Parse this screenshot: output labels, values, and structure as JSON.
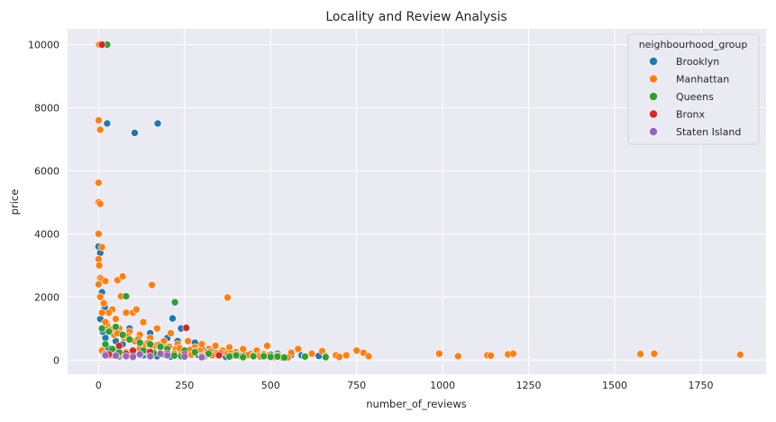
{
  "chart_data": {
    "type": "scatter",
    "title": "Locality and Review Analysis",
    "xlabel": "number_of_reviews",
    "ylabel": "price",
    "xlim": [
      -90,
      1940
    ],
    "ylim": [
      -450,
      10500
    ],
    "xticks": [
      0,
      250,
      500,
      750,
      1000,
      1250,
      1500,
      1750
    ],
    "yticks": [
      0,
      2000,
      4000,
      6000,
      8000,
      10000
    ],
    "grid": true,
    "legend": {
      "title": "neighbourhood_group",
      "position": "top-right"
    },
    "series": [
      {
        "name": "Brooklyn",
        "color": "#1f77b4",
        "points": [
          [
            25,
            7500
          ],
          [
            172,
            7500
          ],
          [
            105,
            7200
          ],
          [
            0,
            3600
          ],
          [
            5,
            3400
          ],
          [
            10,
            2150
          ],
          [
            18,
            1680
          ],
          [
            215,
            1320
          ],
          [
            240,
            1000
          ],
          [
            90,
            1000
          ],
          [
            150,
            850
          ],
          [
            200,
            700
          ],
          [
            230,
            600
          ],
          [
            280,
            550
          ],
          [
            300,
            350
          ],
          [
            330,
            300
          ],
          [
            380,
            300
          ],
          [
            400,
            250
          ],
          [
            420,
            200
          ],
          [
            460,
            180
          ],
          [
            500,
            170
          ],
          [
            520,
            200
          ],
          [
            560,
            160
          ],
          [
            590,
            150
          ],
          [
            600,
            130
          ],
          [
            640,
            130
          ],
          [
            50,
            600
          ],
          [
            70,
            500
          ],
          [
            120,
            420
          ],
          [
            160,
            380
          ],
          [
            190,
            300
          ],
          [
            260,
            260
          ],
          [
            350,
            220
          ],
          [
            440,
            160
          ],
          [
            5,
            1300
          ],
          [
            12,
            900
          ],
          [
            25,
            400
          ],
          [
            40,
            250
          ],
          [
            80,
            180
          ],
          [
            130,
            150
          ],
          [
            170,
            120
          ],
          [
            210,
            110
          ],
          [
            250,
            150
          ],
          [
            310,
            120
          ],
          [
            370,
            100
          ],
          [
            30,
            150
          ],
          [
            60,
            120
          ],
          [
            100,
            200
          ],
          [
            140,
            250
          ],
          [
            180,
            220
          ],
          [
            220,
            180
          ],
          [
            270,
            200
          ],
          [
            290,
            160
          ],
          [
            340,
            180
          ],
          [
            20,
            700
          ],
          [
            35,
            900
          ],
          [
            45,
            320
          ]
        ]
      },
      {
        "name": "Manhattan",
        "color": "#ff7f0e",
        "points": [
          [
            0,
            10000
          ],
          [
            3,
            10000
          ],
          [
            0,
            7600
          ],
          [
            5,
            7300
          ],
          [
            0,
            5620
          ],
          [
            0,
            5000
          ],
          [
            5,
            4950
          ],
          [
            0,
            4000
          ],
          [
            10,
            3580
          ],
          [
            0,
            3200
          ],
          [
            2,
            3000
          ],
          [
            5,
            2600
          ],
          [
            10,
            2550
          ],
          [
            55,
            2530
          ],
          [
            20,
            2500
          ],
          [
            0,
            2400
          ],
          [
            70,
            2650
          ],
          [
            80,
            1500
          ],
          [
            65,
            2020
          ],
          [
            155,
            2380
          ],
          [
            375,
            1980
          ],
          [
            40,
            1600
          ],
          [
            100,
            1500
          ],
          [
            110,
            1600
          ],
          [
            130,
            1200
          ],
          [
            170,
            1000
          ],
          [
            210,
            850
          ],
          [
            260,
            600
          ],
          [
            300,
            500
          ],
          [
            340,
            450
          ],
          [
            380,
            400
          ],
          [
            420,
            350
          ],
          [
            460,
            300
          ],
          [
            490,
            450
          ],
          [
            560,
            230
          ],
          [
            580,
            350
          ],
          [
            620,
            200
          ],
          [
            650,
            280
          ],
          [
            690,
            150
          ],
          [
            720,
            150
          ],
          [
            750,
            300
          ],
          [
            770,
            230
          ],
          [
            785,
            120
          ],
          [
            990,
            200
          ],
          [
            1045,
            120
          ],
          [
            1130,
            150
          ],
          [
            1140,
            140
          ],
          [
            1190,
            180
          ],
          [
            1205,
            200
          ],
          [
            1575,
            190
          ],
          [
            1615,
            200
          ],
          [
            1865,
            170
          ],
          [
            5,
            2000
          ],
          [
            15,
            1800
          ],
          [
            30,
            1500
          ],
          [
            50,
            1300
          ],
          [
            60,
            1000
          ],
          [
            90,
            900
          ],
          [
            120,
            800
          ],
          [
            150,
            700
          ],
          [
            190,
            600
          ],
          [
            230,
            500
          ],
          [
            280,
            400
          ],
          [
            320,
            350
          ],
          [
            360,
            300
          ],
          [
            400,
            250
          ],
          [
            440,
            200
          ],
          [
            480,
            180
          ],
          [
            520,
            150
          ],
          [
            600,
            120
          ],
          [
            660,
            130
          ],
          [
            700,
            100
          ],
          [
            25,
            1100
          ],
          [
            45,
            800
          ],
          [
            75,
            700
          ],
          [
            105,
            600
          ],
          [
            135,
            500
          ],
          [
            165,
            450
          ],
          [
            195,
            400
          ],
          [
            225,
            350
          ],
          [
            255,
            300
          ],
          [
            285,
            280
          ],
          [
            315,
            250
          ],
          [
            345,
            220
          ],
          [
            375,
            200
          ],
          [
            405,
            180
          ],
          [
            435,
            160
          ],
          [
            465,
            150
          ],
          [
            495,
            140
          ],
          [
            10,
            1500
          ],
          [
            20,
            1200
          ],
          [
            35,
            950
          ],
          [
            55,
            850
          ],
          [
            85,
            750
          ],
          [
            115,
            650
          ],
          [
            145,
            550
          ],
          [
            175,
            480
          ],
          [
            205,
            420
          ],
          [
            235,
            380
          ],
          [
            265,
            320
          ],
          [
            295,
            290
          ],
          [
            325,
            260
          ],
          [
            355,
            230
          ],
          [
            385,
            210
          ],
          [
            10,
            300
          ],
          [
            20,
            200
          ],
          [
            40,
            150
          ],
          [
            60,
            180
          ],
          [
            80,
            250
          ],
          [
            100,
            300
          ],
          [
            120,
            350
          ],
          [
            140,
            280
          ],
          [
            160,
            260
          ],
          [
            180,
            240
          ],
          [
            200,
            220
          ],
          [
            220,
            200
          ],
          [
            240,
            190
          ],
          [
            270,
            170
          ],
          [
            310,
            160
          ],
          [
            330,
            150
          ],
          [
            390,
            140
          ],
          [
            410,
            130
          ],
          [
            450,
            120
          ],
          [
            470,
            110
          ],
          [
            510,
            100
          ],
          [
            530,
            90
          ],
          [
            550,
            80
          ]
        ]
      },
      {
        "name": "Queens",
        "color": "#2ca02c",
        "points": [
          [
            25,
            10000
          ],
          [
            80,
            2020
          ],
          [
            222,
            1830
          ],
          [
            10,
            1000
          ],
          [
            30,
            900
          ],
          [
            50,
            1050
          ],
          [
            70,
            800
          ],
          [
            90,
            650
          ],
          [
            120,
            550
          ],
          [
            150,
            500
          ],
          [
            180,
            420
          ],
          [
            200,
            350
          ],
          [
            250,
            300
          ],
          [
            280,
            250
          ],
          [
            320,
            200
          ],
          [
            350,
            150
          ],
          [
            400,
            150
          ],
          [
            450,
            120
          ],
          [
            500,
            100
          ],
          [
            540,
            80
          ],
          [
            600,
            110
          ],
          [
            660,
            90
          ],
          [
            20,
            500
          ],
          [
            40,
            350
          ],
          [
            60,
            250
          ],
          [
            100,
            200
          ],
          [
            130,
            300
          ],
          [
            160,
            220
          ],
          [
            190,
            180
          ],
          [
            220,
            140
          ],
          [
            240,
            120
          ],
          [
            300,
            130
          ],
          [
            380,
            110
          ],
          [
            420,
            90
          ],
          [
            480,
            120
          ],
          [
            520,
            110
          ]
        ]
      },
      {
        "name": "Bronx",
        "color": "#d62728",
        "points": [
          [
            10,
            10000
          ],
          [
            255,
            1020
          ],
          [
            60,
            450
          ],
          [
            100,
            300
          ],
          [
            150,
            250
          ],
          [
            200,
            200
          ],
          [
            350,
            150
          ],
          [
            250,
            180
          ],
          [
            300,
            120
          ],
          [
            120,
            160
          ],
          [
            80,
            200
          ],
          [
            30,
            180
          ]
        ]
      },
      {
        "name": "Staten Island",
        "color": "#9467bd",
        "points": [
          [
            200,
            150
          ],
          [
            150,
            120
          ],
          [
            100,
            100
          ],
          [
            50,
            140
          ],
          [
            250,
            110
          ],
          [
            300,
            90
          ],
          [
            180,
            200
          ],
          [
            120,
            180
          ],
          [
            80,
            120
          ],
          [
            20,
            150
          ]
        ]
      }
    ]
  }
}
